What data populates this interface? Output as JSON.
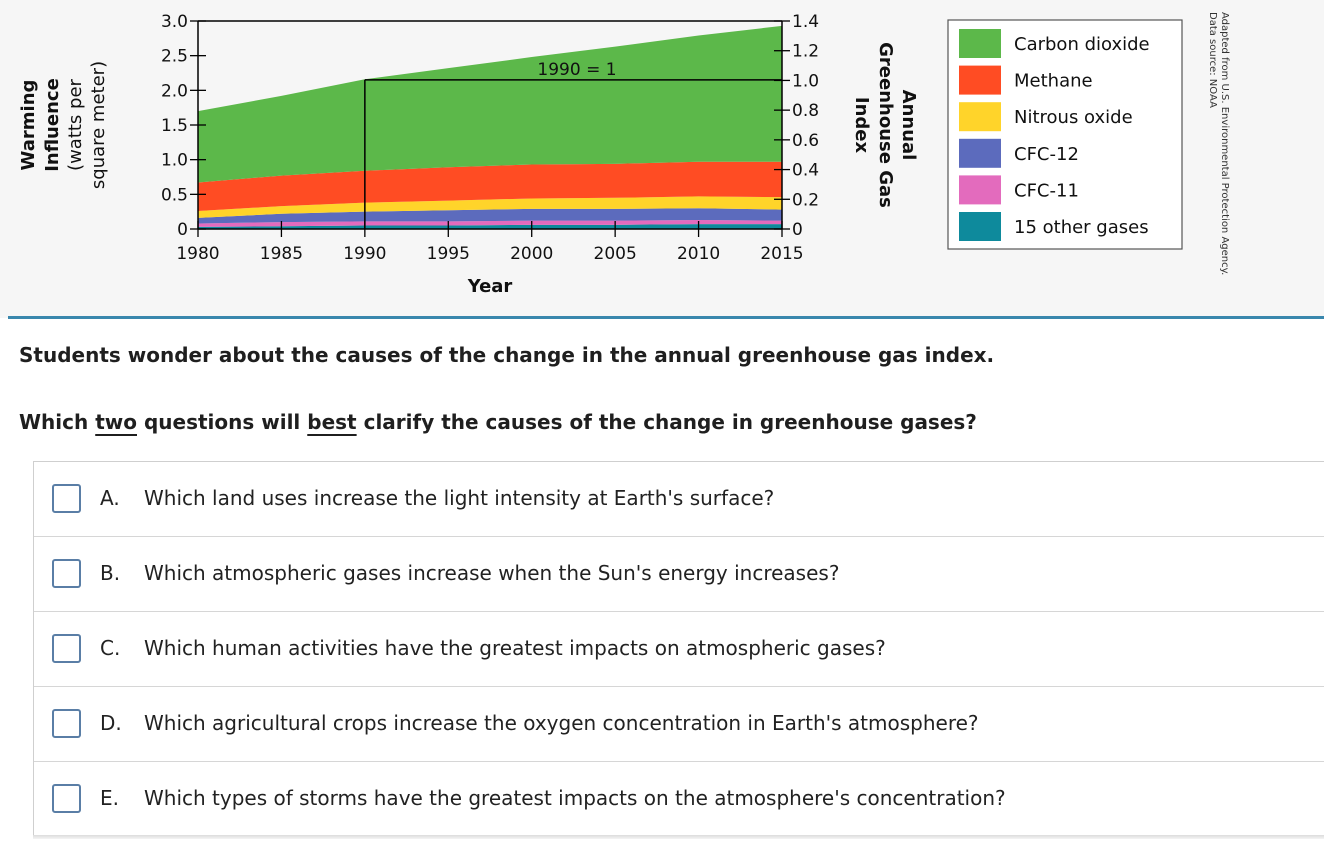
{
  "chart_data": {
    "type": "area",
    "x_range": [
      1980,
      2015
    ],
    "x_ticks": [
      "1980",
      "1985",
      "1990",
      "1995",
      "2000",
      "2005",
      "2010",
      "2015"
    ],
    "xlabel": "Year",
    "ylabel_left_lines": [
      "Warming",
      "Influence",
      "(watts per",
      "square meter)"
    ],
    "y_left_range": [
      0,
      3.0
    ],
    "y_left_ticks": [
      "0",
      "0.5",
      "1.0",
      "1.5",
      "2.0",
      "2.5",
      "3.0"
    ],
    "ylabel_right_lines": [
      "Annual",
      "Greenhouse Gas",
      "Index"
    ],
    "y_right_range": [
      0,
      1.4
    ],
    "y_right_ticks": [
      "0",
      "0.2",
      "0.4",
      "0.6",
      "0.8",
      "1.0",
      "1.2",
      "1.4"
    ],
    "reference_label": "1990 = 1",
    "reference_point": {
      "x": 1990,
      "y_left": 2.15
    },
    "source_lines": [
      "Adapted from U.S. Environmental Protection Agency.",
      "Data source: NOAA"
    ],
    "x": [
      1980,
      1985,
      1990,
      1995,
      2000,
      2005,
      2010,
      2015
    ],
    "series": [
      {
        "name": "15 other gases",
        "color": "#0e8a9c",
        "values": [
          0.03,
          0.04,
          0.05,
          0.05,
          0.06,
          0.06,
          0.07,
          0.07
        ]
      },
      {
        "name": "CFC-11",
        "color": "#e36bbd",
        "values": [
          0.05,
          0.06,
          0.06,
          0.06,
          0.06,
          0.06,
          0.06,
          0.05
        ]
      },
      {
        "name": "CFC-12",
        "color": "#5c6bbd",
        "values": [
          0.08,
          0.12,
          0.14,
          0.16,
          0.17,
          0.17,
          0.17,
          0.16
        ]
      },
      {
        "name": "Nitrous oxide",
        "color": "#ffd42a",
        "values": [
          0.1,
          0.11,
          0.13,
          0.14,
          0.15,
          0.16,
          0.17,
          0.18
        ]
      },
      {
        "name": "Methane",
        "color": "#ff4c23",
        "values": [
          0.41,
          0.44,
          0.46,
          0.48,
          0.49,
          0.49,
          0.5,
          0.51
        ]
      },
      {
        "name": "Carbon dioxide",
        "color": "#5cb84a",
        "values": [
          1.03,
          1.15,
          1.32,
          1.43,
          1.55,
          1.69,
          1.82,
          1.96
        ]
      }
    ],
    "legend_order": [
      "Carbon dioxide",
      "Methane",
      "Nitrous oxide",
      "CFC-12",
      "CFC-11",
      "15 other gases"
    ],
    "legend_position": "right",
    "grid": false
  },
  "prompt": "Students wonder about the causes of the change in the annual greenhouse gas index.",
  "question": {
    "part1": "Which ",
    "u1": "two",
    "part2": " questions will ",
    "u2": "best",
    "part3": " clarify the causes of the change in greenhouse gases?"
  },
  "options": [
    {
      "letter": "A.",
      "text": "Which land uses increase the light intensity at Earth's surface?"
    },
    {
      "letter": "B.",
      "text": "Which atmospheric gases increase when the Sun's energy increases?"
    },
    {
      "letter": "C.",
      "text": "Which human activities have the greatest impacts on atmospheric gases?"
    },
    {
      "letter": "D.",
      "text": "Which agricultural crops increase the oxygen concentration in Earth's atmosphere?"
    },
    {
      "letter": "E.",
      "text": "Which types of storms have the greatest impacts on the atmosphere's concentration?"
    }
  ],
  "colors": {
    "accent_rule": "#3a87ad",
    "checkbox_border": "#5a7ea6",
    "panel_background": "#f6f6f6"
  }
}
